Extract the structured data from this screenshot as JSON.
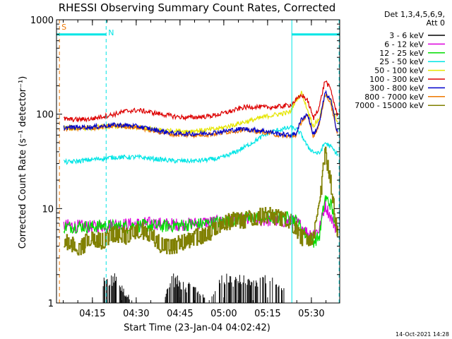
{
  "chart_data": {
    "type": "line",
    "title": "RHESSI Observing Summary Count Rates, Corrected",
    "xlabel": "Start Time (23-Jan-04 04:02:42)",
    "ylabel": "Corrected Count Rate (s⁻¹ detector⁻¹)",
    "yscale": "log",
    "ylim": [
      1,
      1000
    ],
    "xlim_minutes": [
      0,
      97
    ],
    "x_tick_minutes": [
      12.3,
      27.3,
      42.3,
      57.3,
      72.3,
      87.3
    ],
    "x_tick_labels": [
      "04:15",
      "04:30",
      "04:45",
      "05:00",
      "05:15",
      "05:30"
    ],
    "y_tick_values": [
      1,
      10,
      100,
      1000
    ],
    "y_tick_labels": [
      "1",
      "10",
      "100",
      "1000"
    ],
    "legend_header": [
      "Det 1,3,4,5,6,9,",
      "Att 0"
    ],
    "legend_position": "right",
    "footer_date": "14-Oct-2021 14:28",
    "markers": {
      "s_label": "S",
      "n_label": "N",
      "saa_line_minutes": 1.0,
      "night_lines_minutes": [
        17.0,
        80.6,
        96.8
      ],
      "night_bar_level": 700,
      "night_bar_segments": [
        [
          0,
          17.0
        ],
        [
          80.6,
          97
        ]
      ]
    },
    "x_sample_minutes": [
      0,
      4,
      8,
      12,
      16,
      20,
      24,
      28,
      32,
      36,
      40,
      44,
      48,
      52,
      56,
      60,
      64,
      68,
      72,
      76,
      80,
      82,
      84,
      86,
      88,
      90,
      92,
      94,
      96
    ],
    "series": [
      {
        "name": "3 - 6 keV",
        "color": "#000000",
        "style": "bursts",
        "values": [
          1,
          1,
          1,
          1,
          1.6,
          1.8,
          1.2,
          1,
          1,
          1,
          1.8,
          1.5,
          1.4,
          1,
          1.7,
          1.8,
          1.7,
          1.6,
          1.8,
          1.5,
          1.2,
          1,
          1,
          1,
          1,
          1,
          1,
          1,
          1
        ]
      },
      {
        "name": "6 - 12 keV",
        "color": "#dd00dd",
        "style": "noisy",
        "values": [
          6.6,
          6.6,
          6.5,
          6.4,
          6.6,
          6.8,
          6.8,
          6.9,
          7.0,
          6.9,
          6.8,
          6.8,
          7.0,
          7.2,
          7.2,
          7.5,
          7.6,
          7.5,
          7.5,
          7.4,
          7.3,
          7.3,
          6.5,
          5.5,
          5.5,
          6.0,
          11.0,
          8.0,
          6.0
        ]
      },
      {
        "name": "12 - 25 keV",
        "color": "#00dd00",
        "style": "noisy",
        "values": [
          6.5,
          6.4,
          6.5,
          6.4,
          6.6,
          6.5,
          6.5,
          6.6,
          6.6,
          6.5,
          6.6,
          6.7,
          6.8,
          7.0,
          7.2,
          7.6,
          7.8,
          8.0,
          8.1,
          8.0,
          8.0,
          7.5,
          6.0,
          5.0,
          4.5,
          5.0,
          13.0,
          11.0,
          6.0
        ]
      },
      {
        "name": "25 - 50 keV",
        "color": "#00e5e5",
        "style": "noisy",
        "values": [
          32,
          31,
          32,
          33,
          34,
          35,
          35,
          35,
          34,
          33,
          32,
          32,
          32,
          33,
          34,
          38,
          44,
          52,
          62,
          68,
          72,
          70,
          60,
          45,
          40,
          38,
          50,
          45,
          38
        ]
      },
      {
        "name": "50 - 100 keV",
        "color": "#e5e500",
        "style": "noisy",
        "values": [
          72,
          72,
          71,
          72,
          74,
          75,
          74,
          72,
          70,
          68,
          67,
          66,
          67,
          68,
          71,
          76,
          82,
          88,
          95,
          100,
          105,
          140,
          170,
          110,
          75,
          90,
          160,
          140,
          85
        ]
      },
      {
        "name": "100 - 300 keV",
        "color": "#dd0000",
        "style": "noisy",
        "values": [
          90,
          88,
          88,
          89,
          95,
          100,
          108,
          110,
          105,
          100,
          95,
          92,
          93,
          95,
          100,
          108,
          118,
          120,
          118,
          120,
          125,
          140,
          160,
          140,
          90,
          120,
          230,
          180,
          100
        ]
      },
      {
        "name": "300 - 800 keV",
        "color": "#0000cc",
        "style": "noisy",
        "values": [
          73,
          72,
          73,
          73,
          75,
          77,
          76,
          74,
          70,
          66,
          63,
          62,
          62,
          63,
          65,
          68,
          70,
          68,
          66,
          62,
          60,
          62,
          90,
          100,
          60,
          80,
          170,
          140,
          68
        ]
      },
      {
        "name": "800 - 7000 keV",
        "color": "#ee7700",
        "style": "noisy",
        "values": [
          71,
          70,
          71,
          71,
          73,
          75,
          74,
          72,
          68,
          64,
          61,
          60,
          60,
          61,
          63,
          66,
          68,
          66,
          64,
          60,
          58,
          60,
          85,
          95,
          58,
          78,
          165,
          130,
          62
        ]
      },
      {
        "name": "7000 - 15000 keV",
        "color": "#808000",
        "style": "steps",
        "values": [
          3.8,
          4.5,
          3.8,
          5.0,
          4.5,
          5.5,
          5.0,
          6.0,
          5.5,
          4.0,
          4.0,
          4.5,
          5.0,
          5.5,
          6.5,
          7.5,
          7.5,
          8.0,
          8.5,
          8.0,
          7.5,
          6.0,
          5.0,
          4.5,
          5.0,
          10.0,
          40.0,
          18.0,
          6.0
        ]
      }
    ]
  }
}
